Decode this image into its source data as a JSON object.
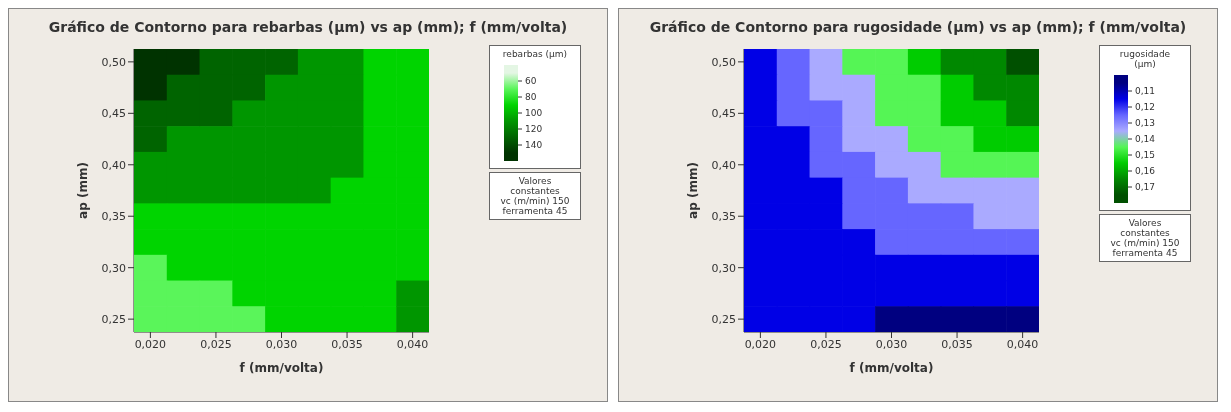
{
  "chart_data": [
    {
      "type": "heatmap",
      "title": "Gráfico de Contorno para rebarbas (µm) vs ap (mm); f (mm/volta)",
      "xlabel": "f (mm/volta)",
      "ylabel": "ap (mm)",
      "legend_title": "rebarbas (µm)",
      "categories": [
        "0,020",
        null,
        "0,025",
        null,
        "0,030",
        null,
        "0,035",
        null,
        "0,040"
      ],
      "y_categories": [
        "0,50",
        null,
        "0,45",
        null,
        "0,40",
        null,
        "0,35",
        null,
        "0,30",
        null,
        "0,25"
      ],
      "cells": [
        [
          150,
          150,
          130,
          130,
          130,
          110,
          110,
          90,
          90
        ],
        [
          150,
          130,
          130,
          130,
          110,
          110,
          110,
          90,
          90
        ],
        [
          130,
          130,
          130,
          110,
          110,
          110,
          110,
          90,
          90
        ],
        [
          130,
          110,
          110,
          110,
          110,
          110,
          110,
          90,
          90
        ],
        [
          110,
          110,
          110,
          110,
          110,
          110,
          110,
          90,
          90
        ],
        [
          110,
          110,
          110,
          110,
          110,
          110,
          90,
          90,
          90
        ],
        [
          90,
          90,
          90,
          90,
          90,
          90,
          90,
          90,
          90
        ],
        [
          90,
          90,
          90,
          90,
          90,
          90,
          90,
          90,
          90
        ],
        [
          70,
          90,
          90,
          90,
          90,
          90,
          90,
          90,
          90
        ],
        [
          70,
          70,
          70,
          90,
          90,
          90,
          90,
          90,
          110
        ],
        [
          70,
          70,
          70,
          70,
          90,
          90,
          90,
          90,
          110
        ]
      ],
      "clim": [
        40,
        160
      ],
      "cticks": [
        60,
        80,
        100,
        120,
        140
      ],
      "colors": [
        "#e4f6e4",
        "#5af55a",
        "#00d400",
        "#009600",
        "#006400",
        "#003300"
      ],
      "annotations": [
        "Valores constantes",
        "vc (m/min) 150",
        "ferramenta 45"
      ]
    },
    {
      "type": "heatmap",
      "title": "Gráfico de Contorno para rugosidade (µm) vs ap (mm); f (mm/volta)",
      "xlabel": "f (mm/volta)",
      "ylabel": "ap (mm)",
      "legend_title": "rugosidade (µm)",
      "categories": [
        "0,020",
        null,
        "0,025",
        null,
        "0,030",
        null,
        "0,035",
        null,
        "0,040"
      ],
      "y_categories": [
        "0,50",
        null,
        "0,45",
        null,
        "0,40",
        null,
        "0,35",
        null,
        "0,30",
        null,
        "0,25"
      ],
      "cells": [
        [
          0.115,
          0.125,
          0.135,
          0.145,
          0.145,
          0.155,
          0.165,
          0.165,
          0.175
        ],
        [
          0.115,
          0.125,
          0.135,
          0.135,
          0.145,
          0.145,
          0.155,
          0.165,
          0.165
        ],
        [
          0.115,
          0.125,
          0.125,
          0.135,
          0.145,
          0.145,
          0.155,
          0.155,
          0.165
        ],
        [
          0.115,
          0.115,
          0.125,
          0.135,
          0.135,
          0.145,
          0.145,
          0.155,
          0.155
        ],
        [
          0.115,
          0.115,
          0.125,
          0.125,
          0.135,
          0.135,
          0.145,
          0.145,
          0.145
        ],
        [
          0.115,
          0.115,
          0.115,
          0.125,
          0.125,
          0.135,
          0.135,
          0.135,
          0.135
        ],
        [
          0.115,
          0.115,
          0.115,
          0.125,
          0.125,
          0.125,
          0.125,
          0.135,
          0.135
        ],
        [
          0.115,
          0.115,
          0.115,
          0.115,
          0.125,
          0.125,
          0.125,
          0.125,
          0.125
        ],
        [
          0.115,
          0.115,
          0.115,
          0.115,
          0.115,
          0.115,
          0.115,
          0.115,
          0.115
        ],
        [
          0.115,
          0.115,
          0.115,
          0.115,
          0.115,
          0.115,
          0.115,
          0.115,
          0.115
        ],
        [
          0.115,
          0.115,
          0.115,
          0.115,
          0.105,
          0.105,
          0.105,
          0.105,
          0.105
        ]
      ],
      "clim": [
        0.1,
        0.18
      ],
      "cticks": [
        {
          "value": 0.11,
          "label": "0,11"
        },
        {
          "value": 0.12,
          "label": "0,12"
        },
        {
          "value": 0.13,
          "label": "0,13"
        },
        {
          "value": 0.14,
          "label": "0,14"
        },
        {
          "value": 0.15,
          "label": "0,15"
        },
        {
          "value": 0.16,
          "label": "0,16"
        },
        {
          "value": 0.17,
          "label": "0,17"
        }
      ],
      "colors": [
        "#000080",
        "#0000e6",
        "#6666ff",
        "#aaaaff",
        "#55f555",
        "#00cc00",
        "#008800",
        "#005000"
      ],
      "annotations": [
        "Valores constantes",
        "vc (m/min) 150",
        "ferramenta 45"
      ]
    }
  ]
}
